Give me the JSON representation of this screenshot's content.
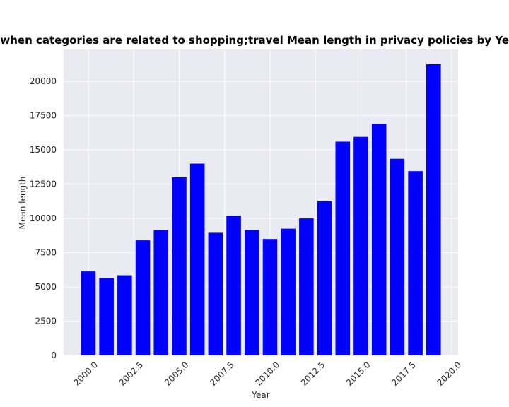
{
  "chart_data": {
    "type": "bar",
    "title": "when categories are related to shopping;travel Mean length in privacy policies by Year",
    "xlabel": "Year",
    "ylabel": "Mean length",
    "x": [
      2000,
      2001,
      2002,
      2003,
      2004,
      2005,
      2006,
      2007,
      2008,
      2009,
      2010,
      2011,
      2012,
      2013,
      2014,
      2015,
      2016,
      2017,
      2018,
      2019
    ],
    "values": [
      6130,
      5650,
      5850,
      8400,
      9150,
      13000,
      14000,
      8950,
      10200,
      9150,
      8500,
      9250,
      10000,
      11250,
      15600,
      15950,
      16900,
      14350,
      13450,
      21250
    ],
    "color": "#0000ff",
    "xlim": [
      1998.64,
      2020.35
    ],
    "xticks": [
      {
        "value": 2000,
        "label": "2000.0"
      },
      {
        "value": 2002.5,
        "label": "2002.5"
      },
      {
        "value": 2005,
        "label": "2005.0"
      },
      {
        "value": 2007.5,
        "label": "2007.5"
      },
      {
        "value": 2010,
        "label": "2010.0"
      },
      {
        "value": 2012.5,
        "label": "2012.5"
      },
      {
        "value": 2015,
        "label": "2015.0"
      },
      {
        "value": 2017.5,
        "label": "2017.5"
      },
      {
        "value": 2020,
        "label": "2020.0"
      }
    ],
    "ylim": [
      0,
      22330
    ],
    "yticks": [
      0,
      2500,
      5000,
      7500,
      10000,
      12500,
      15000,
      17500,
      20000
    ],
    "grid": true
  }
}
